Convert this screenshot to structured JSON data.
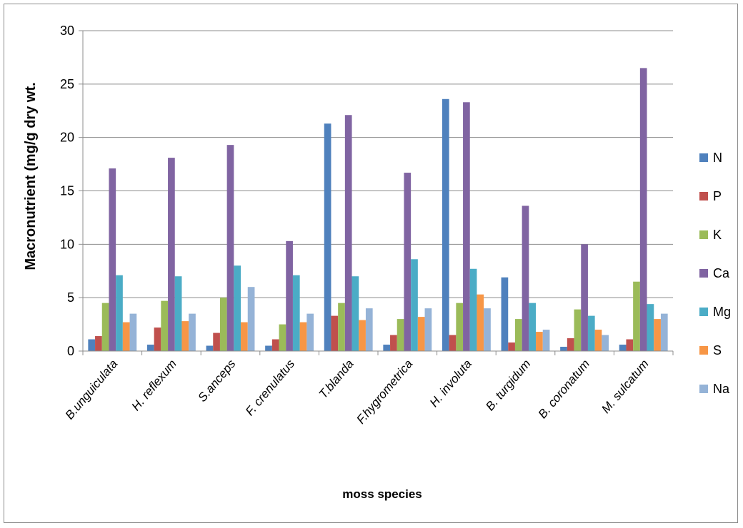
{
  "chart_data": {
    "type": "bar",
    "title": "",
    "xlabel": "moss species",
    "ylabel": "Macronutrient (mg/g dry wt.",
    "ylim": [
      0,
      30
    ],
    "yticks": [
      0,
      5,
      10,
      15,
      20,
      25,
      30
    ],
    "grid": true,
    "legend_position": "right",
    "categories": [
      "B.unguiculata",
      "H. reflexum",
      "S.anceps",
      "F. crenulatus",
      "T.blanda",
      "F.hygrometrica",
      "H. involuta",
      "B. turgidum",
      "B. coronatum",
      "M. sulcatum"
    ],
    "series": [
      {
        "name": "N",
        "color": "#4F81BD",
        "values": [
          1.1,
          0.6,
          0.5,
          0.5,
          21.3,
          0.6,
          23.6,
          6.9,
          0.4,
          0.6
        ]
      },
      {
        "name": "P",
        "color": "#C0504D",
        "values": [
          1.4,
          2.2,
          1.7,
          1.1,
          3.3,
          1.5,
          1.5,
          0.8,
          1.2,
          1.1
        ]
      },
      {
        "name": "K",
        "color": "#9BBB59",
        "values": [
          4.5,
          4.7,
          5.0,
          2.5,
          4.5,
          3.0,
          4.5,
          3.0,
          3.9,
          6.5
        ]
      },
      {
        "name": "Ca",
        "color": "#8064A2",
        "values": [
          17.1,
          18.1,
          19.3,
          10.3,
          22.1,
          16.7,
          23.3,
          13.6,
          10.0,
          26.5
        ]
      },
      {
        "name": "Mg",
        "color": "#4BACC6",
        "values": [
          7.1,
          7.0,
          8.0,
          7.1,
          7.0,
          8.6,
          7.7,
          4.5,
          3.3,
          4.4
        ]
      },
      {
        "name": "S",
        "color": "#F79646",
        "values": [
          2.7,
          2.8,
          2.7,
          2.7,
          2.9,
          3.2,
          5.3,
          1.8,
          2.0,
          3.0
        ]
      },
      {
        "name": "Na",
        "color": "#95B3D7",
        "values": [
          3.5,
          3.5,
          6.0,
          3.5,
          4.0,
          4.0,
          4.0,
          2.0,
          1.5,
          3.5
        ]
      }
    ]
  }
}
